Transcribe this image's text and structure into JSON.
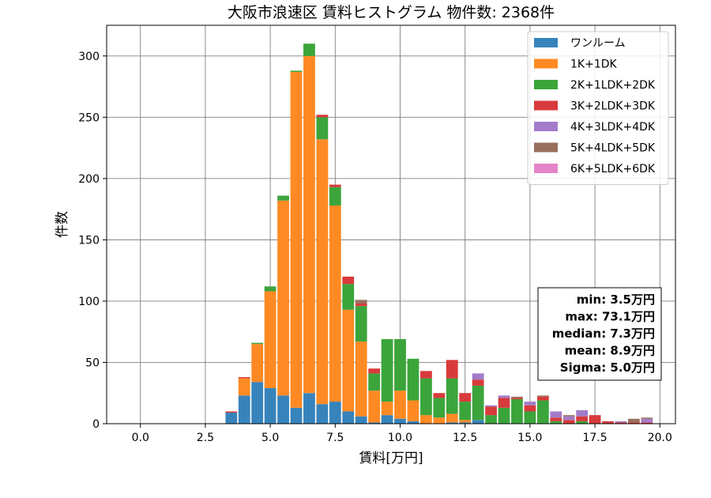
{
  "chart_data": {
    "type": "bar",
    "stacked": true,
    "title": "大阪市浪速区 賃料ヒストグラム  物件数: 2368件",
    "xlabel": "賃料[万円]",
    "ylabel": "件数",
    "xlim": [
      -1.3,
      20.6
    ],
    "ylim": [
      0,
      325
    ],
    "xticks": [
      0,
      2.5,
      5,
      7.5,
      10,
      12.5,
      15,
      17.5,
      20
    ],
    "xtick_labels": [
      "0.0",
      "2.5",
      "5.0",
      "7.5",
      "10.0",
      "12.5",
      "15.0",
      "17.5",
      "20.0"
    ],
    "yticks": [
      0,
      50,
      100,
      150,
      200,
      250,
      300
    ],
    "ytick_labels": [
      "0",
      "50",
      "100",
      "150",
      "200",
      "250",
      "300"
    ],
    "grid": true,
    "legend_position": "top-right",
    "bin_width": 0.5,
    "x": [
      3.5,
      4.0,
      4.5,
      5.0,
      5.5,
      6.0,
      6.5,
      7.0,
      7.5,
      8.0,
      8.5,
      9.0,
      9.5,
      10.0,
      10.5,
      11.0,
      11.5,
      12.0,
      12.5,
      13.0,
      13.5,
      14.0,
      14.5,
      15.0,
      15.5,
      16.0,
      16.5,
      17.0,
      17.5,
      18.0,
      18.5,
      19.0,
      19.5
    ],
    "series": [
      {
        "name": "ワンルーム",
        "color": "#3783bc",
        "values": [
          9,
          23,
          34,
          29,
          23,
          13,
          25,
          16,
          18,
          10,
          6,
          1,
          7,
          4,
          2,
          0,
          0,
          1,
          1,
          3,
          0,
          0,
          0,
          0,
          0,
          0,
          0,
          0,
          0,
          0,
          0,
          0,
          0
        ]
      },
      {
        "name": "1K+1DK",
        "color": "#ff8a24",
        "values": [
          0,
          14,
          31,
          79,
          159,
          274,
          275,
          216,
          160,
          83,
          61,
          26,
          11,
          23,
          17,
          7,
          5,
          7,
          2,
          0,
          0,
          0,
          0,
          0,
          0,
          0,
          0,
          0,
          0,
          0,
          0,
          0,
          0
        ]
      },
      {
        "name": "2K+1LDK+2DK",
        "color": "#3ba53b",
        "values": [
          0,
          0,
          1,
          4,
          4,
          1,
          10,
          18,
          15,
          21,
          29,
          14,
          51,
          42,
          34,
          30,
          16,
          29,
          15,
          28,
          7,
          13,
          20,
          10,
          19,
          2,
          0,
          2,
          0,
          0,
          0,
          0,
          0
        ]
      },
      {
        "name": "3K+2LDK+3DK",
        "color": "#d83a3b",
        "values": [
          1,
          1,
          0,
          0,
          0,
          0,
          0,
          2,
          2,
          6,
          2,
          4,
          0,
          0,
          0,
          6,
          4,
          15,
          7,
          5,
          7,
          8,
          1,
          5,
          3,
          3,
          3,
          4,
          7,
          2,
          1,
          1,
          1
        ]
      },
      {
        "name": "4K+3LDK+4DK",
        "color": "#a27cc9",
        "values": [
          0,
          0,
          0,
          0,
          0,
          0,
          0,
          0,
          0,
          0,
          0,
          0,
          0,
          0,
          0,
          0,
          0,
          0,
          0,
          5,
          1,
          2,
          0,
          3,
          0,
          5,
          3,
          5,
          0,
          0,
          1,
          0,
          3
        ]
      },
      {
        "name": "5K+4LDK+5DK",
        "color": "#9a6f5e",
        "values": [
          0,
          0,
          0,
          0,
          0,
          0,
          0,
          0,
          0,
          0,
          3,
          0,
          0,
          0,
          0,
          0,
          0,
          0,
          0,
          0,
          0,
          0,
          1,
          0,
          1,
          0,
          1,
          0,
          0,
          0,
          0,
          3,
          1
        ]
      },
      {
        "name": "6K+5LDK+6DK",
        "color": "#e584c7",
        "values": [
          0,
          0,
          0,
          0,
          0,
          0,
          0,
          0,
          0,
          0,
          0,
          0,
          0,
          0,
          0,
          0,
          0,
          0,
          0,
          0,
          0,
          0,
          0,
          0,
          0,
          0,
          0,
          0,
          0,
          0,
          0,
          0,
          0
        ]
      }
    ],
    "stats": [
      "min: 3.5万円",
      "max: 73.1万円",
      "median: 7.3万円",
      "mean: 8.9万円",
      "Sigma: 5.0万円"
    ]
  }
}
